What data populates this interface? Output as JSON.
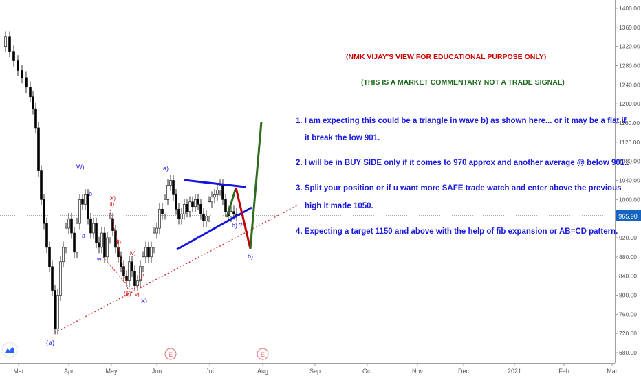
{
  "chart_data": {
    "type": "candlestick",
    "y_axis": {
      "ticks": [
        "1400.00",
        "1360.00",
        "1320.00",
        "1280.00",
        "1240.00",
        "1200.00",
        "1160.00",
        "1120.00",
        "1080.00",
        "1040.00",
        "1000.00",
        "960.00",
        "920.00",
        "880.00",
        "840.00",
        "800.00",
        "760.00",
        "720.00",
        "680.00"
      ],
      "range": [
        660,
        1410
      ]
    },
    "x_axis": {
      "ticks": [
        "Mar",
        "Apr",
        "May",
        "Jun",
        "Jul",
        "Aug",
        "Sep",
        "Oct",
        "Nov",
        "Dec",
        "2021",
        "Feb",
        "Mar"
      ]
    },
    "last_price": "965.90",
    "last_price_color": "#1565c0",
    "up_color": "#ffffff",
    "down_color": "#000000",
    "wave_labels_blue": [
      "W)",
      "b",
      "a",
      "w",
      "a)",
      "b) ?",
      "b)",
      "X)",
      "(a)"
    ],
    "wave_labels_red": [
      "X)",
      "ii)",
      "iii)",
      "iv)",
      "v)",
      "(iii)"
    ],
    "event_markers": [
      "E",
      "E"
    ],
    "trendlines": {
      "triangle_color": "#1515e0",
      "support_color": "#d32f2f",
      "bullish_path_color": "#2e6b1e",
      "bearish_path_color": "#c00000"
    }
  },
  "annotations": {
    "title1": "(NMK VIJAY'S VIEW FOR EDUCATIONAL PURPOSE ONLY)",
    "title2": "(THIS IS A MARKET COMMENTARY NOT A TRADE SIGNAL)",
    "point1_line1": "1. I am expecting this could be a triangle in wave b) as shown here... or it may be a flat if",
    "point1_line2": "it break the low 901.",
    "point2": "2. I will be in BUY SIDE only if it comes to 970 approx and another average @ below 901..",
    "point3_line1": "3. Split your position or if u want more SAFE trade watch and enter above the previous",
    "point3_line2": "high it made 1050.",
    "point4": "4. Expecting a target 1150 and above with the help of fib expansion or AB=CD pattern."
  },
  "logo_icon": "tradingview-logo-icon"
}
